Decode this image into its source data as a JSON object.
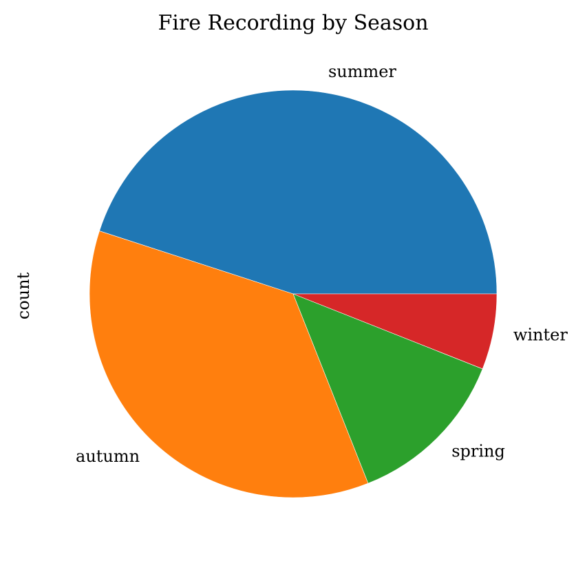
{
  "chart_data": {
    "type": "pie",
    "title": "Fire Recording by Season",
    "ylabel": "count",
    "categories": [
      "summer",
      "autumn",
      "spring",
      "winter"
    ],
    "values": [
      45,
      36,
      13,
      6
    ],
    "colors": [
      "#1f77b4",
      "#ff7f0e",
      "#2ca02c",
      "#d62728"
    ],
    "start_angle_degrees": 0,
    "direction": "counterclockwise",
    "legend": "none"
  }
}
